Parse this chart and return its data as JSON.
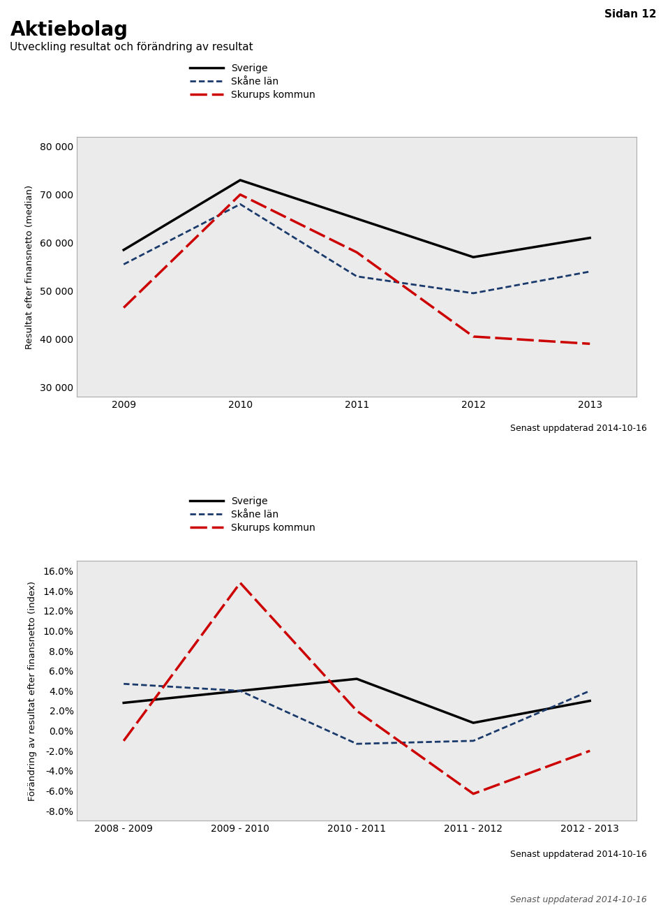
{
  "page_label": "Sidan 12",
  "title_main": "Aktiebolag",
  "subtitle": "Utveckling resultat och förändring av resultat",
  "updated_label": "Senast uppdaterad 2014-10-16",
  "updated_label_italic": "Senast uppdaterad 2014-10-16",
  "legend_labels": [
    "Sverige",
    "Skåne län",
    "Skurups kommun"
  ],
  "color_sverige": "#000000",
  "color_skane": "#1a3a6b",
  "color_skurups": "#CC0000",
  "bg_color": "#EBEBEB",
  "fig_bg": "#FFFFFF",
  "chart1": {
    "ylabel": "Resultat efter finansnetto (median)",
    "x": [
      2009,
      2010,
      2011,
      2012,
      2013
    ],
    "sverige": [
      58500,
      73000,
      65000,
      57000,
      61000
    ],
    "skane": [
      55500,
      68000,
      53000,
      49500,
      54000
    ],
    "skurups": [
      46500,
      70000,
      58000,
      40500,
      39000
    ],
    "ylim": [
      28000,
      82000
    ],
    "yticks": [
      30000,
      40000,
      50000,
      60000,
      70000,
      80000
    ],
    "ytick_labels": [
      "30 000",
      "40 000",
      "50 000",
      "60 000",
      "70 000",
      "80 000"
    ],
    "xlim": [
      2008.6,
      2013.4
    ]
  },
  "chart2": {
    "ylabel": "Förändring av resultat efter finansnetto (index)",
    "x_labels": [
      "2008 - 2009",
      "2009 - 2010",
      "2010 - 2011",
      "2011 - 2012",
      "2012 - 2013"
    ],
    "sverige": [
      0.028,
      0.04,
      0.052,
      0.008,
      0.03
    ],
    "skane": [
      0.047,
      0.04,
      -0.013,
      -0.01,
      0.04
    ],
    "skurups": [
      -0.01,
      0.148,
      0.02,
      -0.063,
      -0.02
    ],
    "ylim": [
      -0.09,
      0.17
    ],
    "yticks": [
      -0.08,
      -0.06,
      -0.04,
      -0.02,
      0.0,
      0.02,
      0.04,
      0.06,
      0.08,
      0.1,
      0.12,
      0.14,
      0.16
    ],
    "ytick_labels": [
      "-8.0%",
      "-6.0%",
      "-4.0%",
      "-2.0%",
      "0.0%",
      "2.0%",
      "4.0%",
      "6.0%",
      "8.0%",
      "10.0%",
      "12.0%",
      "14.0%",
      "16.0%"
    ],
    "xlim": [
      -0.4,
      4.4
    ]
  }
}
